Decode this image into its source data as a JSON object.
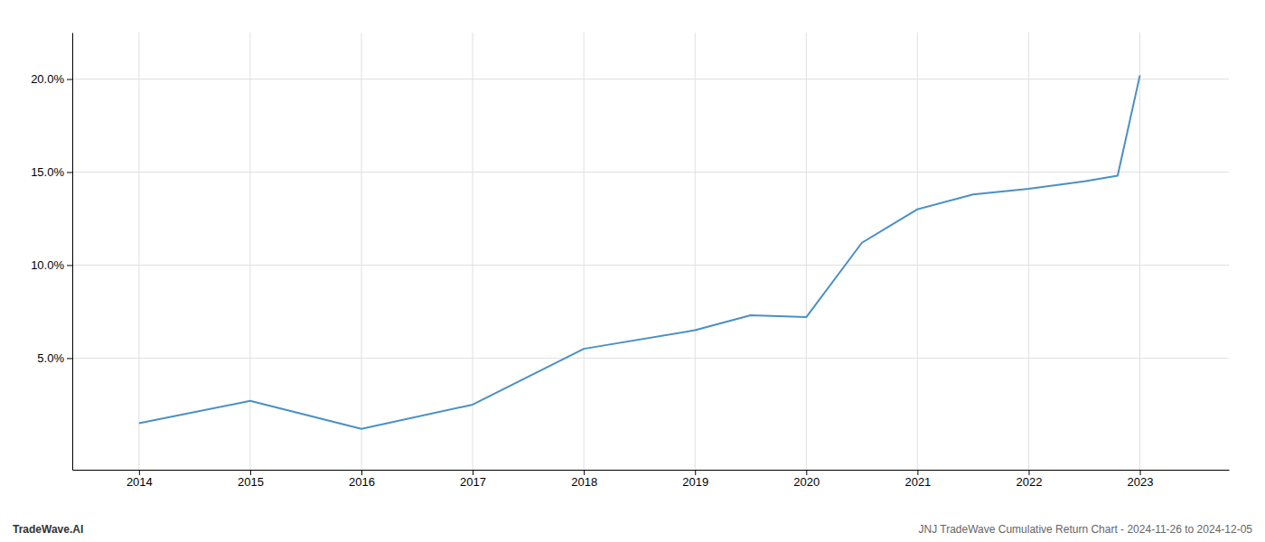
{
  "chart_data": {
    "type": "line",
    "x": [
      2014,
      2015,
      2016,
      2017,
      2018,
      2019,
      2019.5,
      2020,
      2020.5,
      2021,
      2021.5,
      2022,
      2022.5,
      2022.8,
      2023
    ],
    "values": [
      1.5,
      2.7,
      1.2,
      2.5,
      5.5,
      6.5,
      7.3,
      7.2,
      11.2,
      13.0,
      13.8,
      14.1,
      14.5,
      14.8,
      20.2
    ],
    "color": "#4a90c4",
    "xlim": [
      2013.4,
      2023.8
    ],
    "ylim": [
      -1.0,
      22.5
    ],
    "xticks": [
      2014,
      2015,
      2016,
      2017,
      2018,
      2019,
      2020,
      2021,
      2022,
      2023
    ],
    "yticks": [
      {
        "value": 5.0,
        "label": "5.0%"
      },
      {
        "value": 10.0,
        "label": "10.0%"
      },
      {
        "value": 15.0,
        "label": "15.0%"
      },
      {
        "value": 20.0,
        "label": "20.0%"
      }
    ],
    "grid": true,
    "annotations": [
      "TradeWave.AI",
      "JNJ TradeWave Cumulative Return Chart - 2024-11-26 to 2024-12-05"
    ]
  }
}
